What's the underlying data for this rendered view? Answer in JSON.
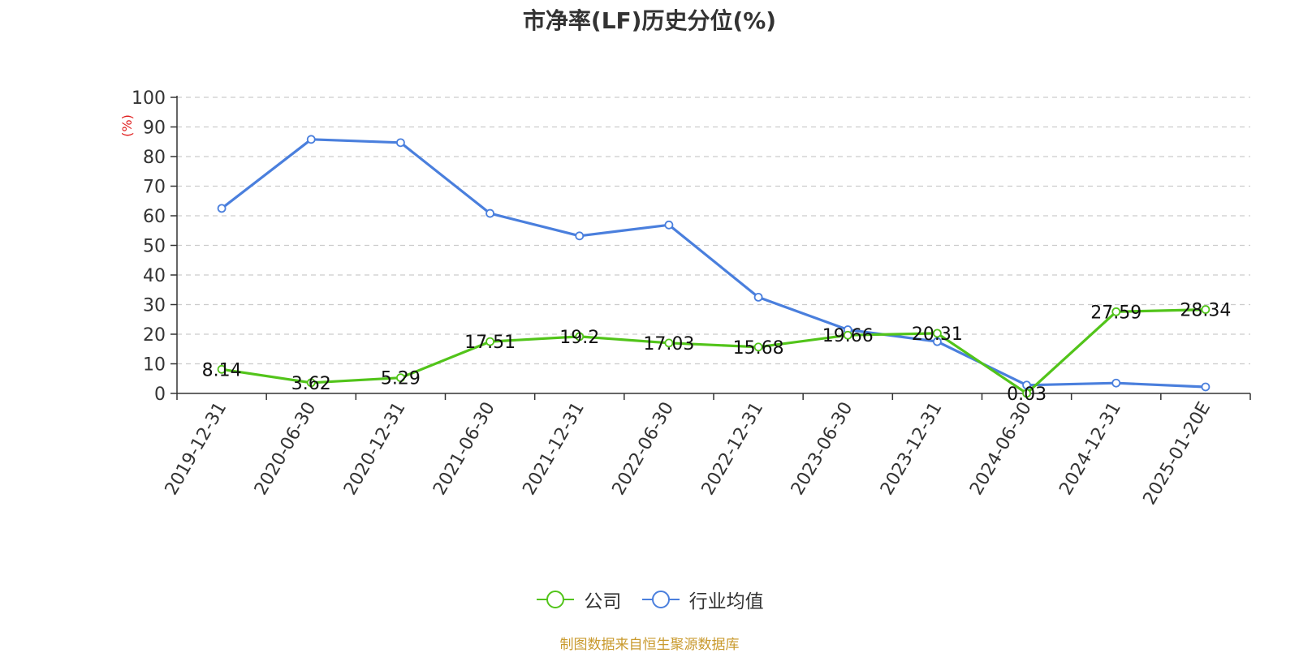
{
  "chart_data": {
    "type": "line",
    "title": "市净率(LF)历史分位(%)",
    "ylabel": "(%)",
    "ylim": [
      0,
      100
    ],
    "yticks": [
      "0",
      "10",
      "20",
      "30",
      "40",
      "50",
      "60",
      "70",
      "80",
      "90",
      "100"
    ],
    "categories": [
      "2019-12-31",
      "2020-06-30",
      "2020-12-31",
      "2021-06-30",
      "2021-12-31",
      "2022-06-30",
      "2022-12-31",
      "2023-06-30",
      "2023-12-31",
      "2024-06-30",
      "2024-12-31",
      "2025-01-20E"
    ],
    "series": [
      {
        "name": "公司",
        "color": "#52c41a",
        "values": [
          8.14,
          3.62,
          5.29,
          17.51,
          19.2,
          17.03,
          15.68,
          19.66,
          20.31,
          0.03,
          27.59,
          28.34
        ],
        "labels": [
          "8.14",
          "3.62",
          "5.29",
          "17.51",
          "19.2",
          "17.03",
          "15.68",
          "19.66",
          "20.31",
          "0.03",
          "27.59",
          "28.34"
        ]
      },
      {
        "name": "行业均值",
        "color": "#4a7fdd",
        "values": [
          62.5,
          85.8,
          84.7,
          60.8,
          53.2,
          56.9,
          32.5,
          21.5,
          17.5,
          2.8,
          3.5,
          2.2
        ]
      }
    ],
    "grid": true,
    "legend_position": "bottom-center"
  },
  "source_note": "制图数据来自恒生聚源数据库",
  "colors": {
    "source_note": "#c99a2e",
    "ylabel": "#e02020",
    "axis": "#333333",
    "grid": "#cccccc"
  }
}
